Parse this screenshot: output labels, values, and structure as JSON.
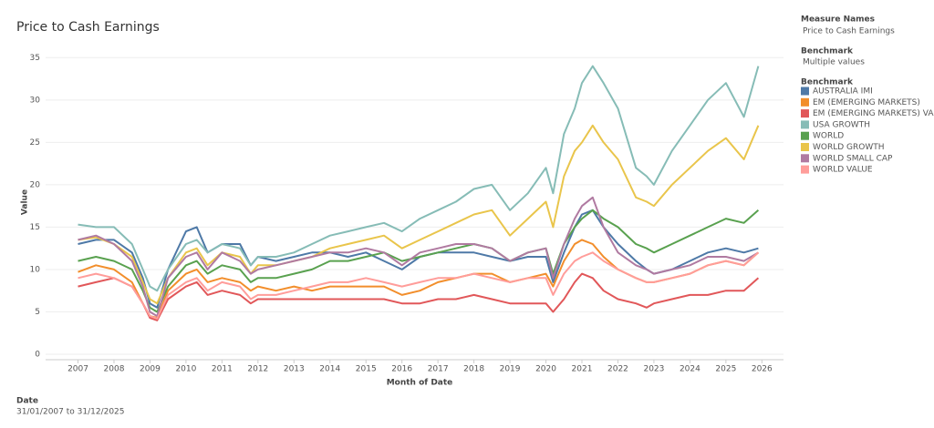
{
  "chart_data": {
    "type": "line",
    "title": "Price to Cash Earnings",
    "x_label": "Month of Date",
    "y_label": "Value",
    "xlim": [
      2006.1,
      2026.6
    ],
    "xticks": [
      2007,
      2008,
      2009,
      2010,
      2011,
      2012,
      2013,
      2014,
      2015,
      2016,
      2017,
      2018,
      2019,
      2020,
      2021,
      2022,
      2023,
      2024,
      2025,
      2026
    ],
    "ylim": [
      0,
      36
    ],
    "yticks": [
      0,
      5,
      10,
      15,
      20,
      25,
      30,
      35
    ],
    "grid": true,
    "legend_position": "right",
    "legend_sections": [
      {
        "title": "Measure Names",
        "value": "Price to Cash Earnings"
      },
      {
        "title": "Benchmark",
        "value": "Multiple values"
      }
    ],
    "legend_title": "Benchmark",
    "filter": {
      "title": "Date",
      "value": "31/01/2007 to 31/12/2025"
    },
    "x": [
      2007.0,
      2007.5,
      2008.0,
      2008.5,
      2008.8,
      2009.0,
      2009.2,
      2009.5,
      2010.0,
      2010.3,
      2010.6,
      2011.0,
      2011.5,
      2011.8,
      2012.0,
      2012.5,
      2013.0,
      2013.5,
      2014.0,
      2014.5,
      2015.0,
      2015.5,
      2016.0,
      2016.5,
      2017.0,
      2017.5,
      2018.0,
      2018.5,
      2019.0,
      2019.5,
      2020.0,
      2020.2,
      2020.5,
      2020.8,
      2021.0,
      2021.3,
      2021.6,
      2022.0,
      2022.5,
      2022.8,
      2023.0,
      2023.5,
      2024.0,
      2024.5,
      2025.0,
      2025.5,
      2025.9
    ],
    "series": [
      {
        "name": "AUSTRALIA IMI",
        "color": "#4e79a7",
        "values": [
          13,
          13.5,
          13.5,
          12,
          9,
          6,
          5.5,
          10,
          14.5,
          15,
          12,
          13,
          13,
          10.5,
          11.5,
          11,
          11.5,
          12,
          12,
          11.5,
          12,
          11,
          10,
          11.5,
          12,
          12,
          12,
          11.5,
          11,
          11.5,
          11.5,
          8.5,
          12,
          15,
          16.5,
          17,
          15,
          13,
          11,
          10,
          9.5,
          10,
          11,
          12,
          12.5,
          12,
          12.5
        ]
      },
      {
        "name": "EM (EMERGING MARKETS)",
        "color": "#f28e2b",
        "values": [
          9.7,
          10.5,
          10,
          8.5,
          6,
          4.5,
          4.3,
          7.5,
          9.5,
          10,
          8.5,
          9,
          8.5,
          7.5,
          8,
          7.5,
          8,
          7.5,
          8,
          8,
          8,
          8,
          7,
          7.5,
          8.5,
          9,
          9.5,
          9.5,
          8.5,
          9,
          9.5,
          8,
          11,
          13,
          13.5,
          13,
          11.5,
          10,
          9,
          8.5,
          8.5,
          9,
          9.5,
          10.5,
          11,
          10.5,
          12
        ]
      },
      {
        "name": "EM (EMERGING MARKETS) VALUE",
        "color": "#e15759",
        "values": [
          8,
          8.5,
          9,
          8,
          6,
          4.3,
          4,
          6.5,
          8,
          8.5,
          7,
          7.5,
          7,
          6,
          6.5,
          6.5,
          6.5,
          6.5,
          6.5,
          6.5,
          6.5,
          6.5,
          6,
          6,
          6.5,
          6.5,
          7,
          6.5,
          6,
          6,
          6,
          5,
          6.5,
          8.5,
          9.5,
          9,
          7.5,
          6.5,
          6,
          5.5,
          6,
          6.5,
          7,
          7,
          7.5,
          7.5,
          9
        ]
      },
      {
        "name": "USA GROWTH",
        "color": "#86bcb6",
        "values": [
          15.3,
          15,
          15,
          13,
          10,
          8,
          7.5,
          10,
          13,
          13.5,
          12,
          13,
          12.5,
          10.5,
          11.5,
          11.5,
          12,
          13,
          14,
          14.5,
          15,
          15.5,
          14.5,
          16,
          17,
          18,
          19.5,
          20,
          17,
          19,
          22,
          19,
          26,
          29,
          32,
          34,
          32,
          29,
          22,
          21,
          20,
          24,
          27,
          30,
          32,
          28,
          34
        ]
      },
      {
        "name": "WORLD",
        "color": "#59a14f",
        "values": [
          11,
          11.5,
          11,
          10,
          7.5,
          5.5,
          5,
          8,
          10.5,
          11,
          9.5,
          10.5,
          10,
          8.5,
          9,
          9,
          9.5,
          10,
          11,
          11,
          11.5,
          12,
          11,
          11.5,
          12,
          12.5,
          13,
          12.5,
          11,
          12,
          12.5,
          9.5,
          13,
          15,
          16,
          17,
          16,
          15,
          13,
          12.5,
          12,
          13,
          14,
          15,
          16,
          15.5,
          17
        ]
      },
      {
        "name": "WORLD GROWTH",
        "color": "#e9c54b",
        "values": [
          13.5,
          13.8,
          13,
          11.5,
          8.5,
          6.5,
          6,
          9,
          12,
          12.5,
          10.5,
          12,
          11.5,
          9.5,
          10.5,
          10.5,
          11,
          11.5,
          12.5,
          13,
          13.5,
          14,
          12.5,
          13.5,
          14.5,
          15.5,
          16.5,
          17,
          14,
          16,
          18,
          15,
          21,
          24,
          25,
          27,
          25,
          23,
          18.5,
          18,
          17.5,
          20,
          22,
          24,
          25.5,
          23,
          27
        ]
      },
      {
        "name": "WORLD SMALL CAP",
        "color": "#b07aa1",
        "values": [
          13.5,
          14,
          13,
          11,
          8,
          5,
          4.5,
          9,
          11.5,
          12,
          10,
          12,
          11,
          9.5,
          10,
          10.5,
          11,
          11.5,
          12,
          12,
          12.5,
          12,
          10.5,
          12,
          12.5,
          13,
          13,
          12.5,
          11,
          12,
          12.5,
          9,
          13,
          16,
          17.5,
          18.5,
          15,
          12,
          10.5,
          10,
          9.5,
          10,
          10.5,
          11.5,
          11.5,
          11,
          12
        ]
      },
      {
        "name": "WORLD VALUE",
        "color": "#ff9d9a",
        "values": [
          9,
          9.5,
          9,
          8,
          6,
          4.5,
          4.2,
          7,
          8.5,
          9,
          7.5,
          8.5,
          8,
          6.5,
          7,
          7,
          7.5,
          8,
          8.5,
          8.5,
          9,
          8.5,
          8,
          8.5,
          9,
          9,
          9.5,
          9,
          8.5,
          9,
          9,
          7,
          9.5,
          11,
          11.5,
          12,
          11,
          10,
          9,
          8.5,
          8.5,
          9,
          9.5,
          10.5,
          11,
          10.5,
          12
        ]
      }
    ]
  }
}
